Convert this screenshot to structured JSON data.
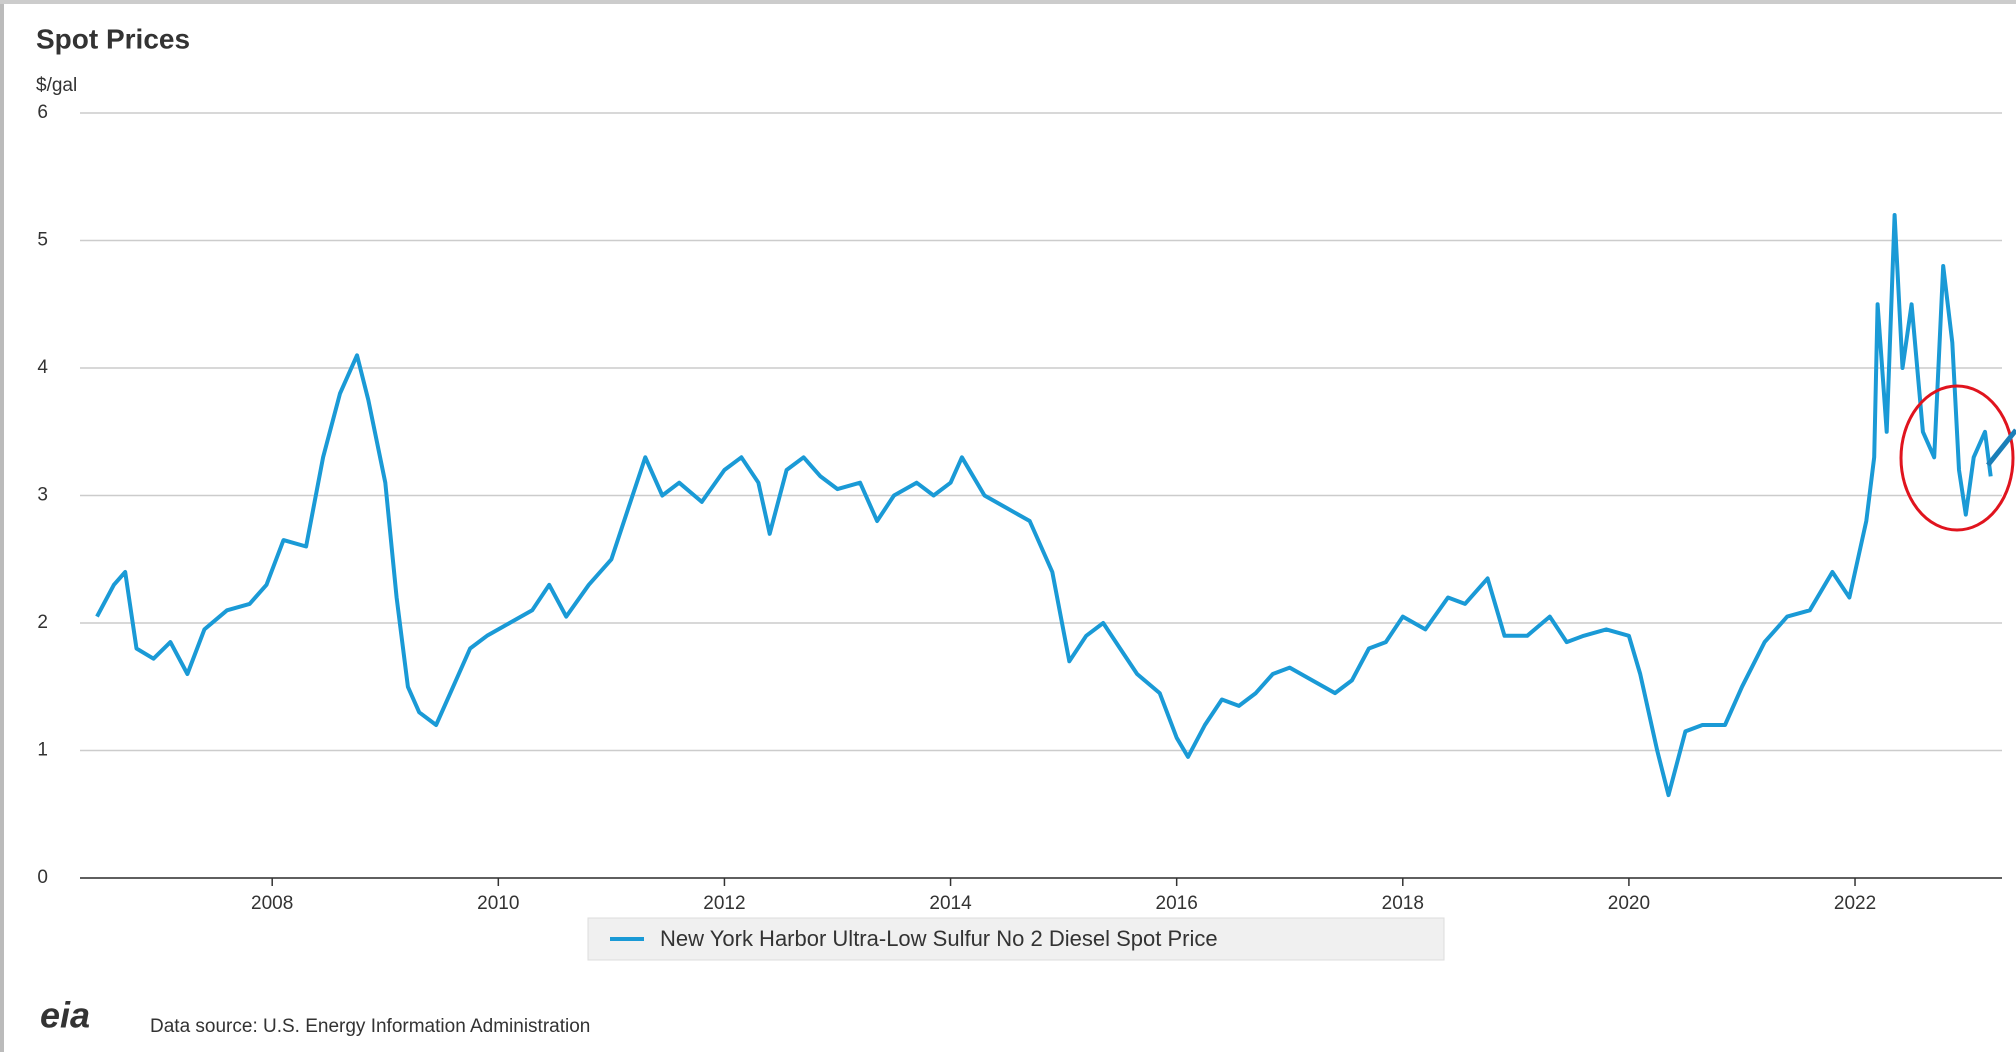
{
  "chart_data": {
    "type": "line",
    "title": "Spot Prices",
    "y_label": "$/gal",
    "x": [
      2006.45,
      2006.6,
      2006.7,
      2006.8,
      2006.95,
      2007.1,
      2007.25,
      2007.4,
      2007.6,
      2007.8,
      2007.95,
      2008.1,
      2008.3,
      2008.45,
      2008.6,
      2008.75,
      2008.85,
      2009.0,
      2009.1,
      2009.2,
      2009.3,
      2009.45,
      2009.6,
      2009.75,
      2009.9,
      2010.1,
      2010.3,
      2010.45,
      2010.6,
      2010.8,
      2011.0,
      2011.15,
      2011.3,
      2011.45,
      2011.6,
      2011.8,
      2012.0,
      2012.15,
      2012.3,
      2012.4,
      2012.55,
      2012.7,
      2012.85,
      2013.0,
      2013.2,
      2013.35,
      2013.5,
      2013.7,
      2013.85,
      2014.0,
      2014.1,
      2014.3,
      2014.5,
      2014.7,
      2014.9,
      2015.05,
      2015.2,
      2015.35,
      2015.5,
      2015.65,
      2015.85,
      2016.0,
      2016.1,
      2016.25,
      2016.4,
      2016.55,
      2016.7,
      2016.85,
      2017.0,
      2017.2,
      2017.4,
      2017.55,
      2017.7,
      2017.85,
      2018.0,
      2018.2,
      2018.4,
      2018.55,
      2018.75,
      2018.9,
      2019.1,
      2019.3,
      2019.45,
      2019.6,
      2019.8,
      2020.0,
      2020.1,
      2020.25,
      2020.35,
      2020.5,
      2020.65,
      2020.85,
      2021.0,
      2021.2,
      2021.4,
      2021.6,
      2021.8,
      2021.95,
      2022.1,
      2022.17,
      2022.2,
      2022.28,
      2022.35,
      2022.42,
      2022.5,
      2022.6,
      2022.7,
      2022.78,
      2022.86,
      2022.92,
      2022.98,
      2023.05,
      2023.15,
      2023.2
    ],
    "series": [
      {
        "name": "New York Harbor Ultra-Low Sulfur No 2 Diesel Spot Price",
        "color": "#1a9ad6",
        "values": [
          2.05,
          2.3,
          2.4,
          1.8,
          1.72,
          1.85,
          1.6,
          1.95,
          2.1,
          2.15,
          2.3,
          2.65,
          2.6,
          3.3,
          3.8,
          4.1,
          3.75,
          3.1,
          2.2,
          1.5,
          1.3,
          1.2,
          1.5,
          1.8,
          1.9,
          2.0,
          2.1,
          2.3,
          2.05,
          2.3,
          2.5,
          2.9,
          3.3,
          3.0,
          3.1,
          2.95,
          3.2,
          3.3,
          3.1,
          2.7,
          3.2,
          3.3,
          3.15,
          3.05,
          3.1,
          2.8,
          3.0,
          3.1,
          3.0,
          3.1,
          3.3,
          3.0,
          2.9,
          2.8,
          2.4,
          1.7,
          1.9,
          2.0,
          1.8,
          1.6,
          1.45,
          1.1,
          0.95,
          1.2,
          1.4,
          1.35,
          1.45,
          1.6,
          1.65,
          1.55,
          1.45,
          1.55,
          1.8,
          1.85,
          2.05,
          1.95,
          2.2,
          2.15,
          2.35,
          1.9,
          1.9,
          2.05,
          1.85,
          1.9,
          1.95,
          1.9,
          1.6,
          1.0,
          0.65,
          1.15,
          1.2,
          1.2,
          1.5,
          1.85,
          2.05,
          2.1,
          2.4,
          2.2,
          2.8,
          3.3,
          4.5,
          3.5,
          5.2,
          4.0,
          4.5,
          3.5,
          3.3,
          4.8,
          4.2,
          3.2,
          2.85,
          3.3,
          3.5,
          3.15
        ]
      }
    ],
    "xlim": [
      2006.3,
      2023.3
    ],
    "xticks": [
      2008,
      2010,
      2012,
      2014,
      2016,
      2018,
      2020,
      2022
    ],
    "ylim": [
      0,
      6
    ],
    "yticks": [
      0,
      1,
      2,
      3,
      4,
      5,
      6
    ],
    "grid": true,
    "legend": "bottom",
    "logo": "eia",
    "source": "Data source: U.S. Energy Information Administration"
  }
}
